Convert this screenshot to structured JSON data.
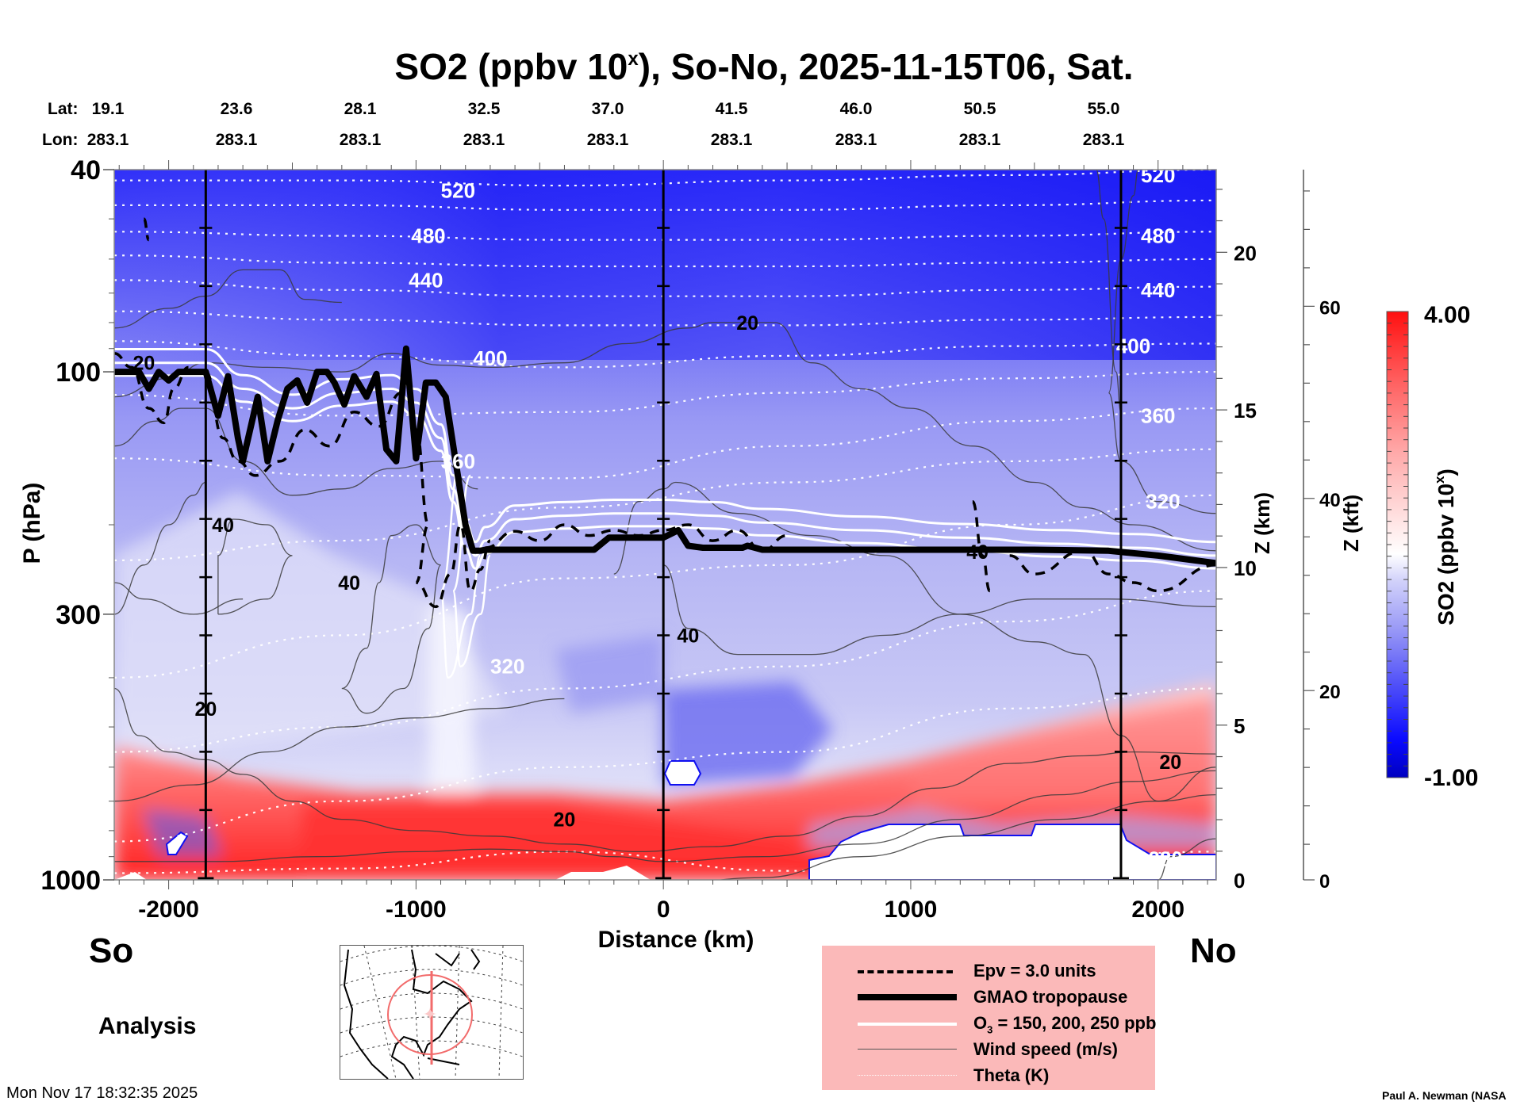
{
  "chart_data": {
    "type": "heatmap",
    "title": "SO2 (ppbv 10",
    "title_sup": "x",
    "title_tail": "), So-No, 2025-11-15T06, Sat.",
    "xlabel": "Distance (km)",
    "ylabel": "P (hPa)",
    "y2label": "Z (km)",
    "y3label": "Z (kft)",
    "xlim": [
      -2220,
      2235
    ],
    "ylim_hpa": [
      1000,
      40
    ],
    "y_scale": "log",
    "x_ticks": [
      -2000,
      -1000,
      0,
      1000,
      2000
    ],
    "x_tick_labels": [
      "-2000",
      "-1000",
      "0",
      "1000",
      "2000"
    ],
    "y_ticks_hpa": [
      40,
      100,
      300,
      1000
    ],
    "y_tick_labels": [
      "40",
      "100",
      "300",
      "1000"
    ],
    "z_km_ticks": [
      0,
      5,
      10,
      15,
      20
    ],
    "z_kft_ticks": [
      0,
      20,
      40,
      60
    ],
    "lat_label": "Lat:",
    "lon_label": "Lon:",
    "latitudes": [
      "19.1",
      "23.6",
      "28.1",
      "32.5",
      "37.0",
      "41.5",
      "46.0",
      "50.5",
      "55.0"
    ],
    "longitudes": [
      "283.1",
      "283.1",
      "283.1",
      "283.1",
      "283.1",
      "283.1",
      "283.1",
      "283.1",
      "283.1"
    ],
    "lat_positions_km": [
      -2220,
      -1720,
      -1220,
      -720,
      -220,
      280,
      780,
      1280,
      1780
    ],
    "vertical_markers_km": [
      -1850,
      0,
      1850
    ],
    "colorbar": {
      "label": "SO2 (ppbv 10",
      "label_sup": "x",
      "label_tail": ")",
      "min": -1.0,
      "max": 4.0,
      "min_label": "-1.00",
      "max_label": "4.00",
      "low_color": "#0000c8",
      "mid_color": "#ffffff",
      "high_color": "#ff0000"
    },
    "theta_levels_K": [
      {
        "value": 520,
        "label": "520",
        "p": [
          42,
          42,
          43,
          42,
          41,
          40
        ]
      },
      {
        "value": 500,
        "label": "",
        "p": [
          47,
          47,
          48,
          48,
          47,
          46
        ]
      },
      {
        "value": 480,
        "label": "480",
        "p": [
          53,
          54,
          55,
          55,
          54,
          53
        ]
      },
      {
        "value": 460,
        "label": "",
        "p": [
          59,
          61,
          62,
          62,
          61,
          60
        ]
      },
      {
        "value": 440,
        "label": "440",
        "p": [
          66,
          69,
          71,
          71,
          69,
          68
        ]
      },
      {
        "value": 420,
        "label": "",
        "p": [
          76,
          79,
          81,
          81,
          79,
          78
        ]
      },
      {
        "value": 400,
        "label": "400",
        "p": [
          87,
          93,
          98,
          93,
          89,
          88
        ]
      },
      {
        "value": 380,
        "label": "",
        "p": [
          111,
          122,
          120,
          110,
          103,
          100
        ]
      },
      {
        "value": 360,
        "label": "360",
        "p": [
          148,
          160,
          162,
          140,
          125,
          118
        ]
      },
      {
        "value": 340,
        "label": "",
        "p": [
          235,
          215,
          185,
          165,
          150,
          142
        ]
      },
      {
        "value": 320,
        "label": "320",
        "p": [
          400,
          330,
          255,
          240,
          200,
          175
        ]
      },
      {
        "value": 300,
        "label": "",
        "p": [
          560,
          500,
          420,
          380,
          310,
          270
        ]
      },
      {
        "value": 290,
        "label": "",
        "p": [
          840,
          700,
          600,
          560,
          460,
          420
        ]
      },
      {
        "value": 280,
        "label": "280",
        "p": [
          970,
          950,
          880,
          960,
          920,
          880
        ]
      }
    ],
    "theta_x_km": [
      -2220,
      -1300,
      -400,
      500,
      1400,
      2235
    ],
    "theta_label_positions": [
      {
        "label": "520",
        "x": -830,
        "p": 44
      },
      {
        "label": "520",
        "x": 2000,
        "p": 41
      },
      {
        "label": "480",
        "x": -950,
        "p": 54
      },
      {
        "label": "480",
        "x": 2000,
        "p": 54
      },
      {
        "label": "440",
        "x": -960,
        "p": 66
      },
      {
        "label": "440",
        "x": 2000,
        "p": 69
      },
      {
        "label": "400",
        "x": -700,
        "p": 94
      },
      {
        "label": "400",
        "x": 1900,
        "p": 89
      },
      {
        "label": "360",
        "x": -830,
        "p": 150
      },
      {
        "label": "360",
        "x": 2000,
        "p": 122
      },
      {
        "label": "320",
        "x": -630,
        "p": 380
      },
      {
        "label": "320",
        "x": 2020,
        "p": 180
      },
      {
        "label": "280",
        "x": 2030,
        "p": 910
      }
    ],
    "tropopause": {
      "x_km": [
        -2220,
        -2120,
        -2080,
        -2040,
        -2000,
        -1960,
        -1850,
        -1800,
        -1760,
        -1720,
        -1700,
        -1640,
        -1600,
        -1560,
        -1520,
        -1480,
        -1440,
        -1400,
        -1360,
        -1330,
        -1290,
        -1250,
        -1200,
        -1160,
        -1120,
        -1080,
        -1040,
        -1000,
        -960,
        -920,
        -880,
        -840,
        -800,
        -770,
        -740,
        -720,
        -640,
        -280,
        -220,
        -100,
        0,
        60,
        100,
        160,
        200,
        320,
        340,
        400,
        1000,
        1500,
        1800,
        2000,
        2235
      ],
      "p_hpa": [
        100,
        100,
        108,
        100,
        104,
        100,
        100,
        122,
        102,
        135,
        150,
        112,
        150,
        125,
        108,
        104,
        115,
        100,
        100,
        105,
        116,
        102,
        112,
        101,
        142,
        150,
        90,
        148,
        105,
        105,
        112,
        150,
        200,
        225,
        225,
        224,
        224,
        224,
        212,
        212,
        212,
        205,
        220,
        222,
        222,
        222,
        220,
        224,
        224,
        224,
        225,
        230,
        238
      ]
    },
    "ozone_contours_ppb": [
      150,
      200,
      250
    ],
    "epv_units": 3.0,
    "wind_speed_labels": [
      {
        "label": "20",
        "x": -2100,
        "p": 96
      },
      {
        "label": "20",
        "x": 340,
        "p": 80
      },
      {
        "label": "20",
        "x": 2050,
        "p": 585
      },
      {
        "label": "20",
        "x": -1850,
        "p": 460
      },
      {
        "label": "20",
        "x": -400,
        "p": 760
      },
      {
        "label": "40",
        "x": -1780,
        "p": 200
      },
      {
        "label": "40",
        "x": -1270,
        "p": 260
      },
      {
        "label": "40",
        "x": 100,
        "p": 330
      },
      {
        "label": "40",
        "x": 1270,
        "p": 226
      }
    ]
  },
  "header": {
    "title_main": "SO2 (ppbv 10",
    "title_sup": "x",
    "title_tail": "), So-No, 2025-11-15T06, Sat."
  },
  "labels": {
    "south": "So",
    "north": "No",
    "analysis": "Analysis",
    "timestamp": "Mon Nov 17 18:32:35 2025",
    "credit": "Paul A. Newman (NASA"
  },
  "legend": {
    "items": [
      {
        "label": "Epv = 3.0 units",
        "style": "dashed"
      },
      {
        "label": "GMAO tropopause",
        "style": "thick"
      },
      {
        "label_pre": "O",
        "label_sub": "3",
        "label_post": " = 150, 200, 250 ppb",
        "style": "white"
      },
      {
        "label": "Wind speed (m/s)",
        "style": "thin"
      },
      {
        "label": "Theta (K)",
        "style": "dotted"
      }
    ],
    "background": "#fbb9b9"
  },
  "map": {
    "circle_color": "#f26b6b",
    "line_color": "#f26b6b",
    "star_color": "#fbc8c8"
  }
}
